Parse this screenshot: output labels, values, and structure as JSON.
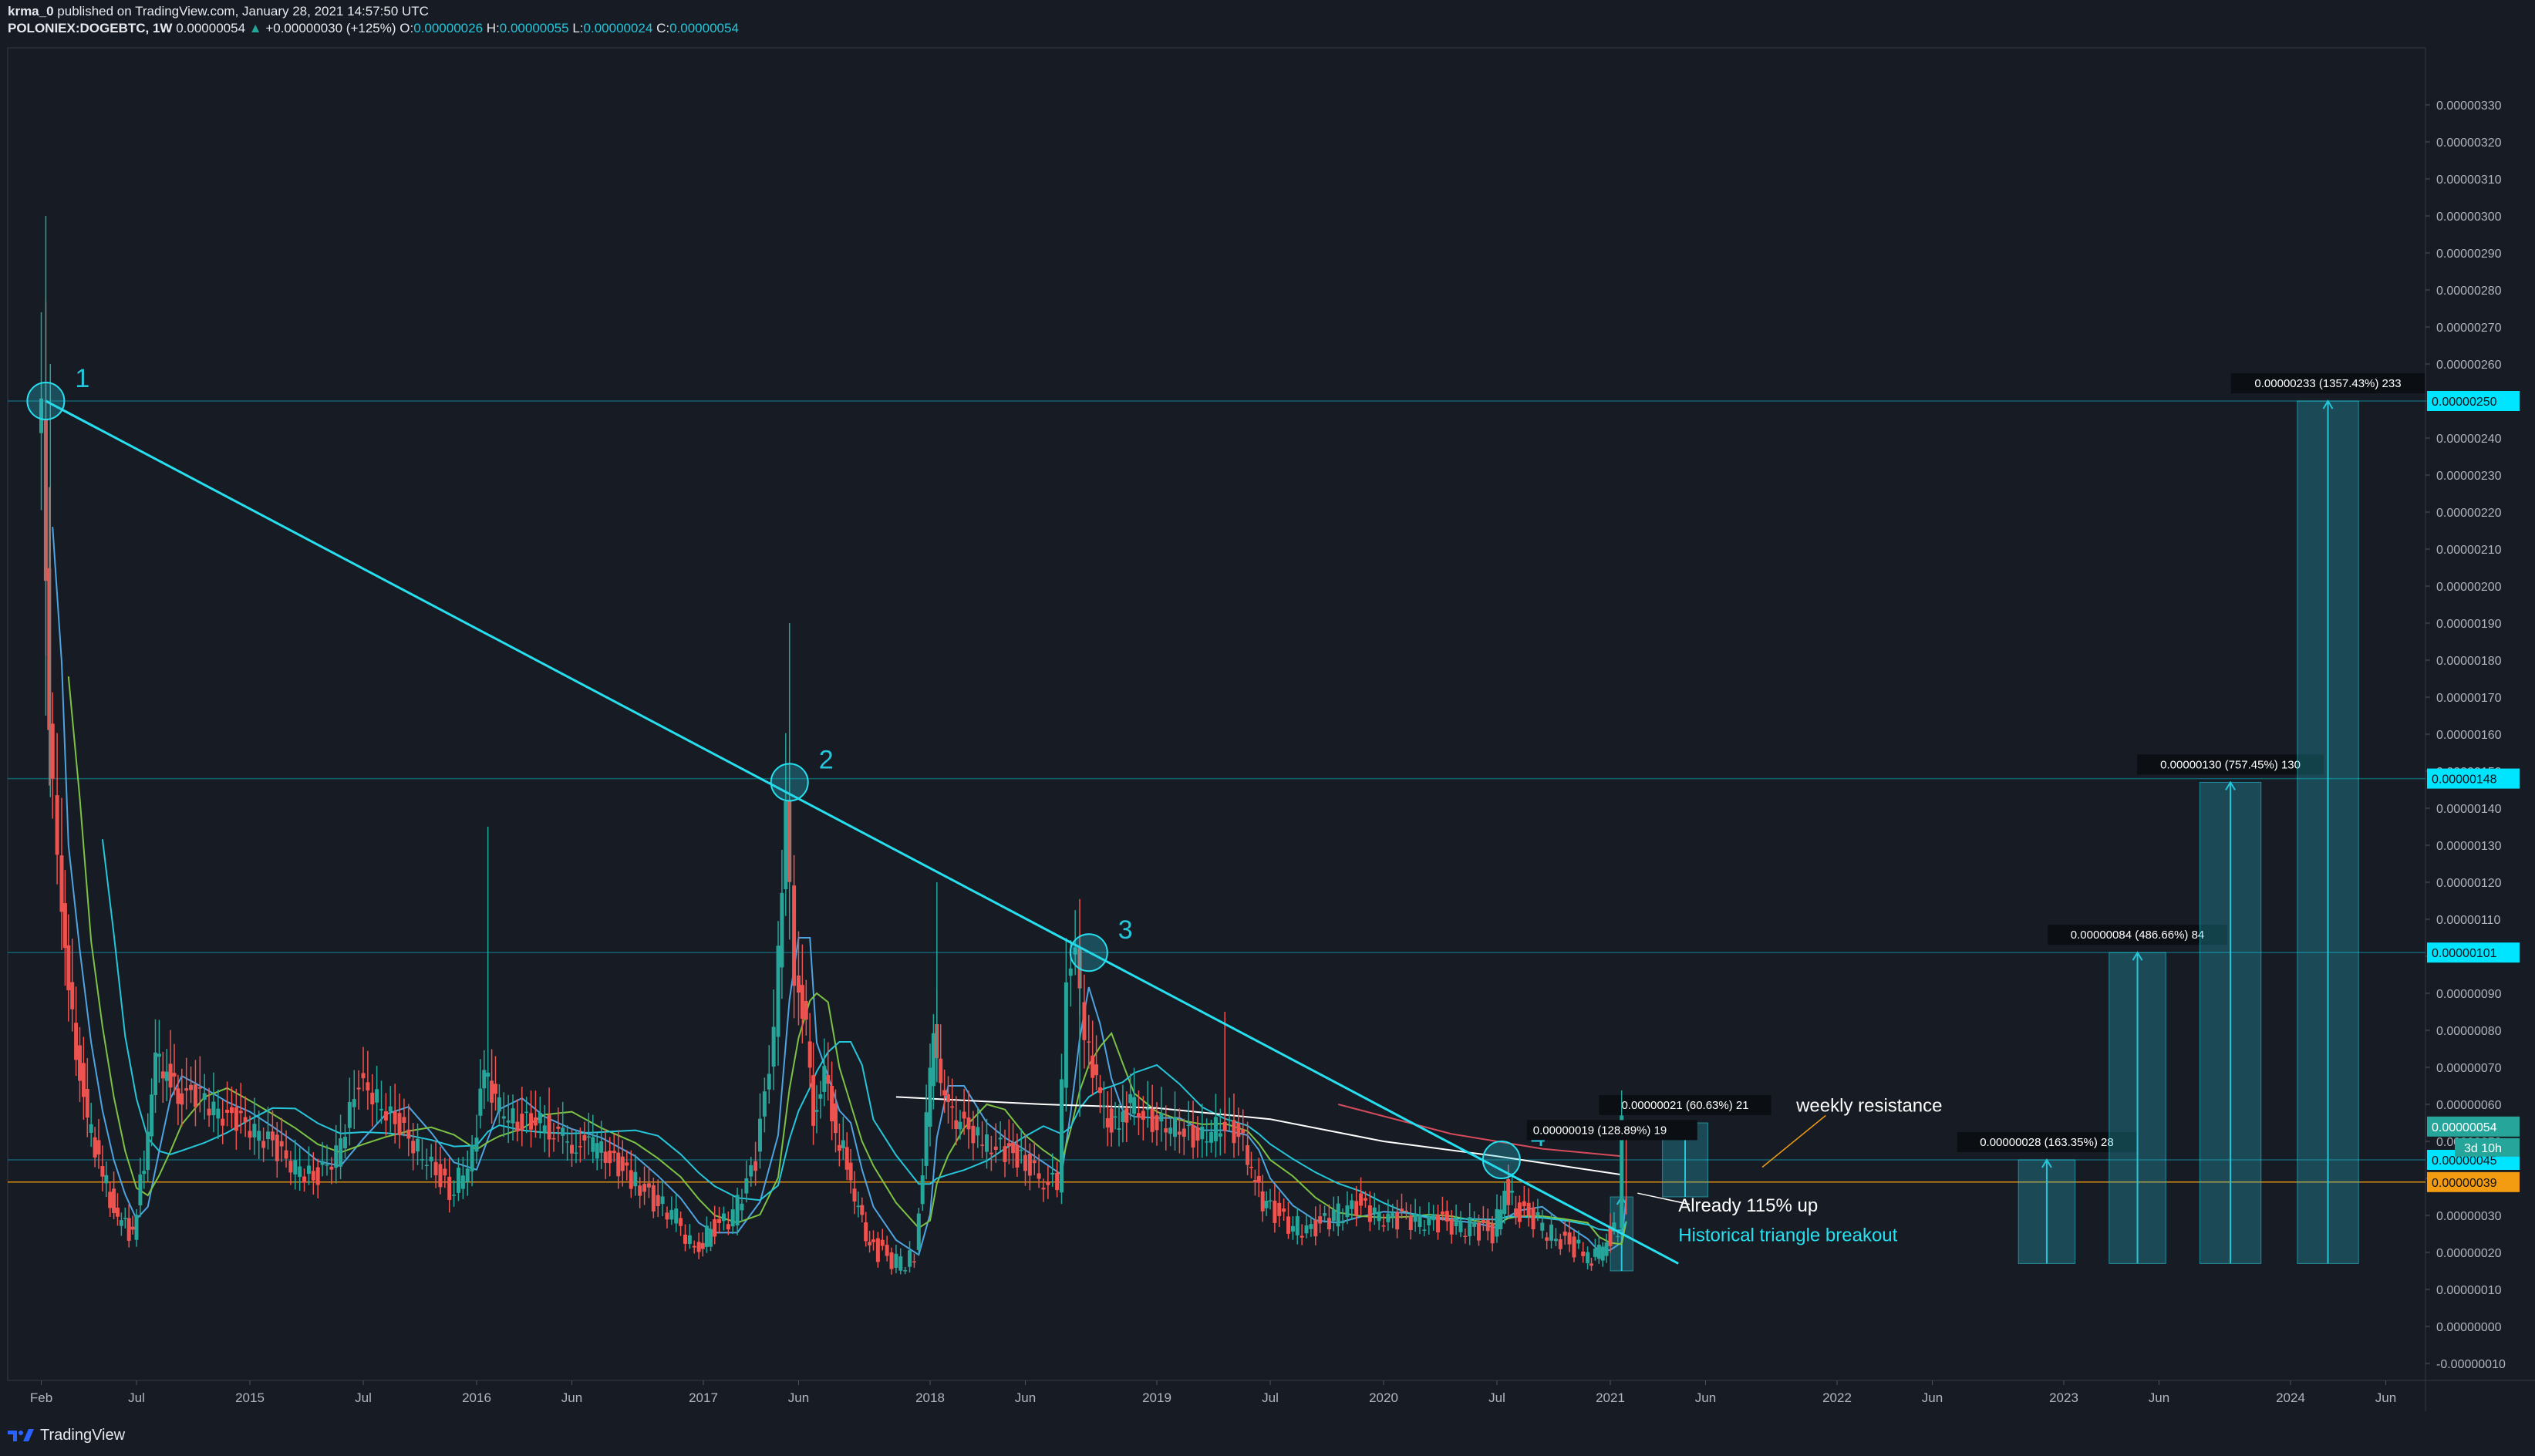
{
  "header": {
    "author": "krma_0",
    "published": " published on TradingView.com, January 28, 2021 14:57:50 UTC",
    "symbol": "POLONIEX:DOGEBTC, 1W",
    "last": "0.00000054",
    "change": "+0.00000030 (+125%)",
    "o_label": "O:",
    "o": "0.00000026",
    "h_label": "H:",
    "h": "0.00000055",
    "l_label": "L:",
    "l": "0.00000024",
    "c_label": "C:",
    "c": "0.00000054"
  },
  "footer": {
    "brand": "TradingView",
    "logo_icon": "tradingview-logo-icon"
  },
  "chart_data": {
    "type": "candlestick",
    "symbol": "POLONIEX:DOGEBTC",
    "interval": "1W",
    "ylim": [
      -1e-07,
      3.3e-06
    ],
    "y_tick_labels": [
      "-0.00000010",
      "0.00000000",
      "0.00000010",
      "0.00000020",
      "0.00000030",
      "0.00000040",
      "0.00000050",
      "0.00000060",
      "0.00000070",
      "0.00000080",
      "0.00000090",
      "0.00000100",
      "0.00000110",
      "0.00000120",
      "0.00000130",
      "0.00000140",
      "0.00000150",
      "0.00000160",
      "0.00000170",
      "0.00000180",
      "0.00000190",
      "0.00000200",
      "0.00000210",
      "0.00000220",
      "0.00000230",
      "0.00000240",
      "0.00000250",
      "0.00000260",
      "0.00000270",
      "0.00000280",
      "0.00000290",
      "0.00000300",
      "0.00000310",
      "0.00000320",
      "0.00000330"
    ],
    "x_ticks": [
      {
        "label": "Feb",
        "t": 2014.08
      },
      {
        "label": "Jul",
        "t": 2014.5
      },
      {
        "label": "2015",
        "t": 2015.0
      },
      {
        "label": "Jul",
        "t": 2015.5
      },
      {
        "label": "2016",
        "t": 2016.0
      },
      {
        "label": "Jun",
        "t": 2016.42
      },
      {
        "label": "2017",
        "t": 2017.0
      },
      {
        "label": "Jun",
        "t": 2017.42
      },
      {
        "label": "2018",
        "t": 2018.0
      },
      {
        "label": "Jun",
        "t": 2018.42
      },
      {
        "label": "2019",
        "t": 2019.0
      },
      {
        "label": "Jul",
        "t": 2019.5
      },
      {
        "label": "2020",
        "t": 2020.0
      },
      {
        "label": "Jul",
        "t": 2020.5
      },
      {
        "label": "2021",
        "t": 2021.0
      },
      {
        "label": "Jun",
        "t": 2021.42
      },
      {
        "label": "2022",
        "t": 2022.0
      },
      {
        "label": "Jun",
        "t": 2022.42
      },
      {
        "label": "2023",
        "t": 2023.0
      },
      {
        "label": "Jun",
        "t": 2023.42
      },
      {
        "label": "2024",
        "t": 2024.0
      },
      {
        "label": "Jun",
        "t": 2024.42
      }
    ],
    "xlim": [
      2014.0,
      2024.6
    ],
    "price_series": [
      [
        2014.08,
        2.4
      ],
      [
        2014.1,
        2.48
      ],
      [
        2014.13,
        1.6
      ],
      [
        2014.17,
        1.3
      ],
      [
        2014.2,
        1.0
      ],
      [
        2014.25,
        0.75
      ],
      [
        2014.3,
        0.55
      ],
      [
        2014.35,
        0.45
      ],
      [
        2014.4,
        0.35
      ],
      [
        2014.45,
        0.27
      ],
      [
        2014.5,
        0.25
      ],
      [
        2014.55,
        0.45
      ],
      [
        2014.6,
        0.72
      ],
      [
        2014.65,
        0.68
      ],
      [
        2014.7,
        0.63
      ],
      [
        2014.8,
        0.62
      ],
      [
        2014.9,
        0.57
      ],
      [
        2015.0,
        0.55
      ],
      [
        2015.1,
        0.5
      ],
      [
        2015.2,
        0.44
      ],
      [
        2015.3,
        0.4
      ],
      [
        2015.4,
        0.46
      ],
      [
        2015.5,
        0.66
      ],
      [
        2015.6,
        0.6
      ],
      [
        2015.7,
        0.52
      ],
      [
        2015.8,
        0.45
      ],
      [
        2015.9,
        0.36
      ],
      [
        2016.0,
        0.46
      ],
      [
        2016.05,
        0.7
      ],
      [
        2016.1,
        0.6
      ],
      [
        2016.2,
        0.55
      ],
      [
        2016.3,
        0.55
      ],
      [
        2016.42,
        0.5
      ],
      [
        2016.55,
        0.48
      ],
      [
        2016.7,
        0.4
      ],
      [
        2016.8,
        0.34
      ],
      [
        2016.9,
        0.3
      ],
      [
        2016.98,
        0.2
      ],
      [
        2017.05,
        0.26
      ],
      [
        2017.15,
        0.3
      ],
      [
        2017.25,
        0.45
      ],
      [
        2017.33,
        0.8
      ],
      [
        2017.38,
        1.4
      ],
      [
        2017.42,
        0.95
      ],
      [
        2017.47,
        0.8
      ],
      [
        2017.5,
        0.55
      ],
      [
        2017.55,
        0.68
      ],
      [
        2017.6,
        0.52
      ],
      [
        2017.65,
        0.45
      ],
      [
        2017.7,
        0.3
      ],
      [
        2017.75,
        0.22
      ],
      [
        2017.85,
        0.18
      ],
      [
        2017.95,
        0.18
      ],
      [
        2018.0,
        0.55
      ],
      [
        2018.03,
        0.8
      ],
      [
        2018.08,
        0.6
      ],
      [
        2018.15,
        0.55
      ],
      [
        2018.25,
        0.5
      ],
      [
        2018.33,
        0.48
      ],
      [
        2018.42,
        0.45
      ],
      [
        2018.5,
        0.4
      ],
      [
        2018.58,
        0.38
      ],
      [
        2018.62,
        0.95
      ],
      [
        2018.66,
        1.0
      ],
      [
        2018.7,
        0.8
      ],
      [
        2018.75,
        0.65
      ],
      [
        2018.8,
        0.56
      ],
      [
        2018.85,
        0.54
      ],
      [
        2018.9,
        0.6
      ],
      [
        2019.0,
        0.55
      ],
      [
        2019.1,
        0.54
      ],
      [
        2019.2,
        0.5
      ],
      [
        2019.3,
        0.55
      ],
      [
        2019.4,
        0.5
      ],
      [
        2019.45,
        0.38
      ],
      [
        2019.5,
        0.32
      ],
      [
        2019.6,
        0.28
      ],
      [
        2019.7,
        0.26
      ],
      [
        2019.8,
        0.3
      ],
      [
        2019.9,
        0.33
      ],
      [
        2020.0,
        0.3
      ],
      [
        2020.1,
        0.29
      ],
      [
        2020.2,
        0.29
      ],
      [
        2020.3,
        0.28
      ],
      [
        2020.4,
        0.27
      ],
      [
        2020.5,
        0.25
      ],
      [
        2020.55,
        0.37
      ],
      [
        2020.6,
        0.32
      ],
      [
        2020.7,
        0.28
      ],
      [
        2020.8,
        0.23
      ],
      [
        2020.9,
        0.2
      ],
      [
        2020.95,
        0.18
      ],
      [
        2021.0,
        0.24
      ],
      [
        2021.05,
        0.26
      ],
      [
        2021.07,
        0.54
      ]
    ],
    "annotations": {
      "trendline": {
        "from": [
          2014.1,
          2.5
        ],
        "to": [
          2021.3,
          0.17
        ],
        "label": "Historical triangle breakout"
      },
      "touch_points": [
        {
          "label": "1",
          "t": 2014.1,
          "v": 2.5
        },
        {
          "label": "2",
          "t": 2017.38,
          "v": 1.47
        },
        {
          "label": "3",
          "t": 2018.7,
          "v": 1.01
        },
        {
          "label": "4",
          "t": 2020.52,
          "v": 0.45
        }
      ],
      "horizontal_levels": [
        {
          "value": 0.39,
          "label": "0.00000039",
          "color": "#f39c12"
        },
        {
          "value": 0.45,
          "label": "0.00000045",
          "color": "#00e5ff"
        },
        {
          "value": 1.01,
          "label": "0.00000101",
          "color": "#00e5ff"
        },
        {
          "value": 1.48,
          "label": "0.00000148",
          "color": "#00e5ff"
        },
        {
          "value": 2.5,
          "label": "0.00000250",
          "color": "#00e5ff"
        }
      ],
      "last_price": {
        "value": 0.54,
        "label": "0.00000054",
        "color": "#26a69a",
        "countdown": "3d 10h"
      },
      "weekly_resistance_label": "weekly resistance",
      "already_up_label": "Already 115% up",
      "measure_boxes": [
        {
          "t0": 2021.0,
          "t1": 2021.1,
          "low": 0.15,
          "high": 0.35,
          "label": ""
        },
        {
          "t0": 2021.23,
          "t1": 2021.43,
          "low": 0.35,
          "high": 0.55,
          "label": "0.00000021 (60.63%) 21"
        },
        {
          "t0": 2022.8,
          "t1": 2023.05,
          "low": 0.17,
          "high": 0.45,
          "label": "0.00000028 (163.35%) 28"
        },
        {
          "t0": 2023.2,
          "t1": 2023.45,
          "low": 0.17,
          "high": 1.01,
          "label": "0.00000084 (486.66%) 84"
        },
        {
          "t0": 2023.6,
          "t1": 2023.87,
          "low": 0.17,
          "high": 1.47,
          "label": "0.00000130 (757.45%) 130"
        },
        {
          "t0": 2024.03,
          "t1": 2024.3,
          "low": 0.17,
          "high": 2.5,
          "label": "0.00000233 (1357.43%) 233"
        }
      ],
      "measure_small_label": "0.00000019 (128.89%) 19"
    },
    "ma_colors": [
      "#4fa3e0",
      "#7cc244",
      "#26c6da",
      "#ffffff",
      "#d64b5c"
    ],
    "candle_colors": {
      "up": "#26a69a",
      "down": "#ef5350"
    },
    "grid": false
  }
}
